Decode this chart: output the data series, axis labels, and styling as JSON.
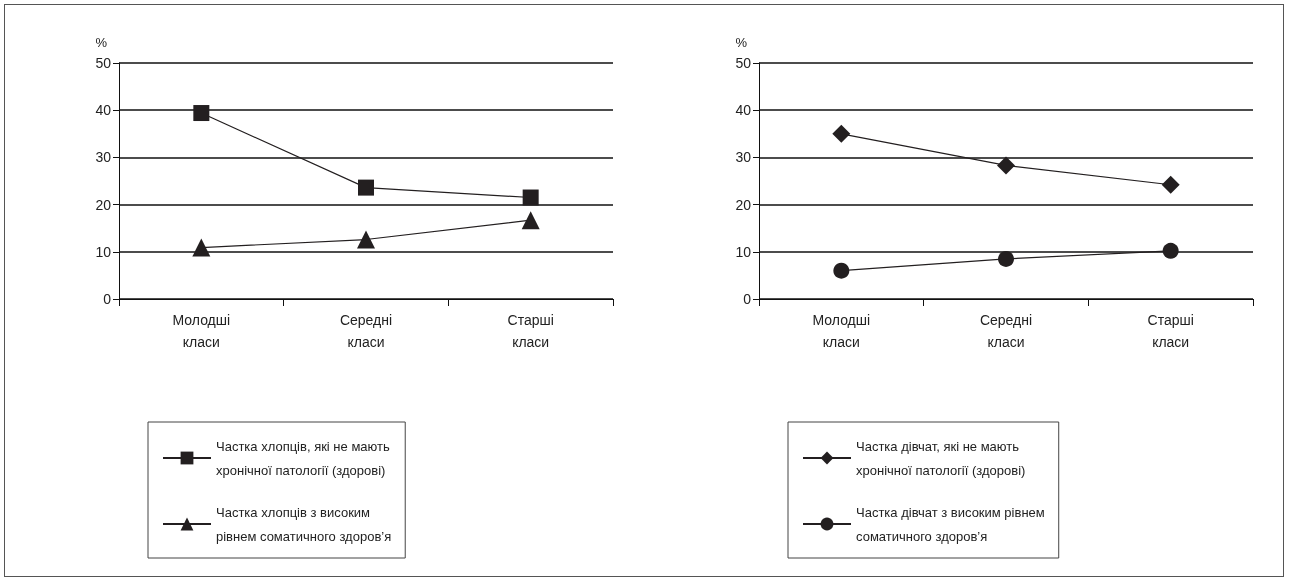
{
  "chart_data": [
    {
      "type": "line",
      "ylabel": "%",
      "categories": [
        "Молодші класи",
        "Середні класи",
        "Старші класи"
      ],
      "series": [
        {
          "name": "Частка хлопців, які не мають хронічної патології (здорові)",
          "color": "#231f20",
          "marker": "square",
          "values": [
            39.4,
            23.6,
            21.5
          ]
        },
        {
          "name": "Частка хлопців з високим рівнем соматичного здоров’я",
          "color": "#231f20",
          "marker": "triangle",
          "values": [
            10.9,
            12.6,
            16.7
          ]
        }
      ],
      "ylim": [
        0,
        50
      ],
      "yticks": [
        0,
        10,
        20,
        30,
        40,
        50
      ],
      "grid": "y",
      "legend": "bottom",
      "line_style": "solid"
    },
    {
      "type": "line",
      "ylabel": "%",
      "categories": [
        "Молодші класи",
        "Середні класи",
        "Старші класи"
      ],
      "series": [
        {
          "name": "Частка дівчат, які не мають хронічної патології (здорові)",
          "color": "#231f20",
          "marker": "diamond",
          "values": [
            35.0,
            28.3,
            24.2
          ]
        },
        {
          "name": "Частка дівчат з високим рівнем соматичного здоров’я",
          "color": "#231f20",
          "marker": "circle",
          "values": [
            6.0,
            8.5,
            10.2
          ]
        }
      ],
      "ylim": [
        0,
        50
      ],
      "yticks": [
        0,
        10,
        20,
        30,
        40,
        50
      ],
      "grid": "y",
      "legend": "bottom",
      "line_style": "solid"
    }
  ]
}
